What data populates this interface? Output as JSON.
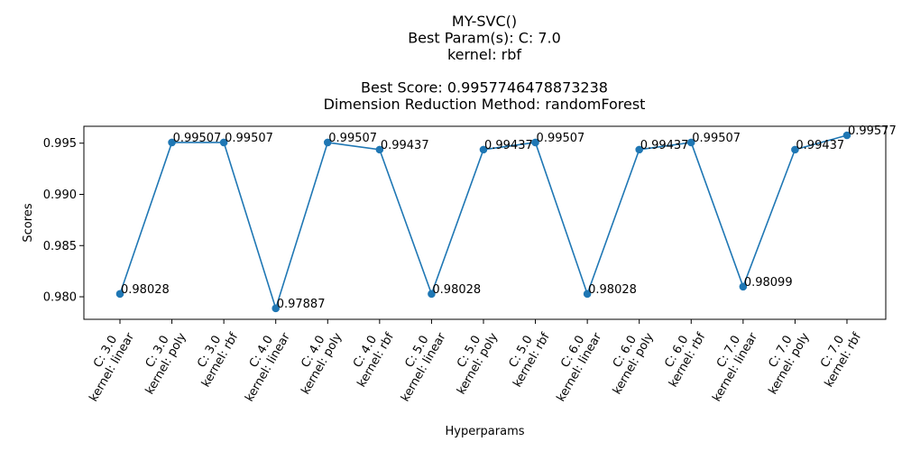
{
  "chart_data": {
    "type": "line",
    "title_lines": [
      "MY-SVC()",
      "Best Param(s): C: 7.0",
      "kernel: rbf",
      "",
      "Best Score: 0.9957746478873238",
      "Dimension Reduction Method: randomForest"
    ],
    "xlabel": "Hyperparams",
    "ylabel": "Scores",
    "categories": [
      [
        "C: 3.0",
        "kernel: linear"
      ],
      [
        "C: 3.0",
        "kernel: poly"
      ],
      [
        "C: 3.0",
        "kernel: rbf"
      ],
      [
        "C: 4.0",
        "kernel: linear"
      ],
      [
        "C: 4.0",
        "kernel: poly"
      ],
      [
        "C: 4.0",
        "kernel: rbf"
      ],
      [
        "C: 5.0",
        "kernel: linear"
      ],
      [
        "C: 5.0",
        "kernel: poly"
      ],
      [
        "C: 5.0",
        "kernel: rbf"
      ],
      [
        "C: 6.0",
        "kernel: linear"
      ],
      [
        "C: 6.0",
        "kernel: poly"
      ],
      [
        "C: 6.0",
        "kernel: rbf"
      ],
      [
        "C: 7.0",
        "kernel: linear"
      ],
      [
        "C: 7.0",
        "kernel: poly"
      ],
      [
        "C: 7.0",
        "kernel: rbf"
      ]
    ],
    "values": [
      0.98028,
      0.99507,
      0.99507,
      0.97887,
      0.99507,
      0.99437,
      0.98028,
      0.99437,
      0.99507,
      0.98028,
      0.99437,
      0.99507,
      0.98099,
      0.99437,
      0.99577
    ],
    "data_labels": [
      "0.98028",
      "0.99507",
      "0.99507",
      "0.97887",
      "0.99507",
      "0.99437",
      "0.98028",
      "0.99437",
      "0.99507",
      "0.98028",
      "0.99437",
      "0.99507",
      "0.98099",
      "0.99437",
      "0.99577"
    ],
    "yticks": [
      "0.980",
      "0.985",
      "0.990",
      "0.995"
    ],
    "ytick_values": [
      0.98,
      0.985,
      0.99,
      0.995
    ],
    "ylim": [
      0.9778,
      0.99665
    ],
    "grid": false,
    "color": "#1f77b4"
  }
}
